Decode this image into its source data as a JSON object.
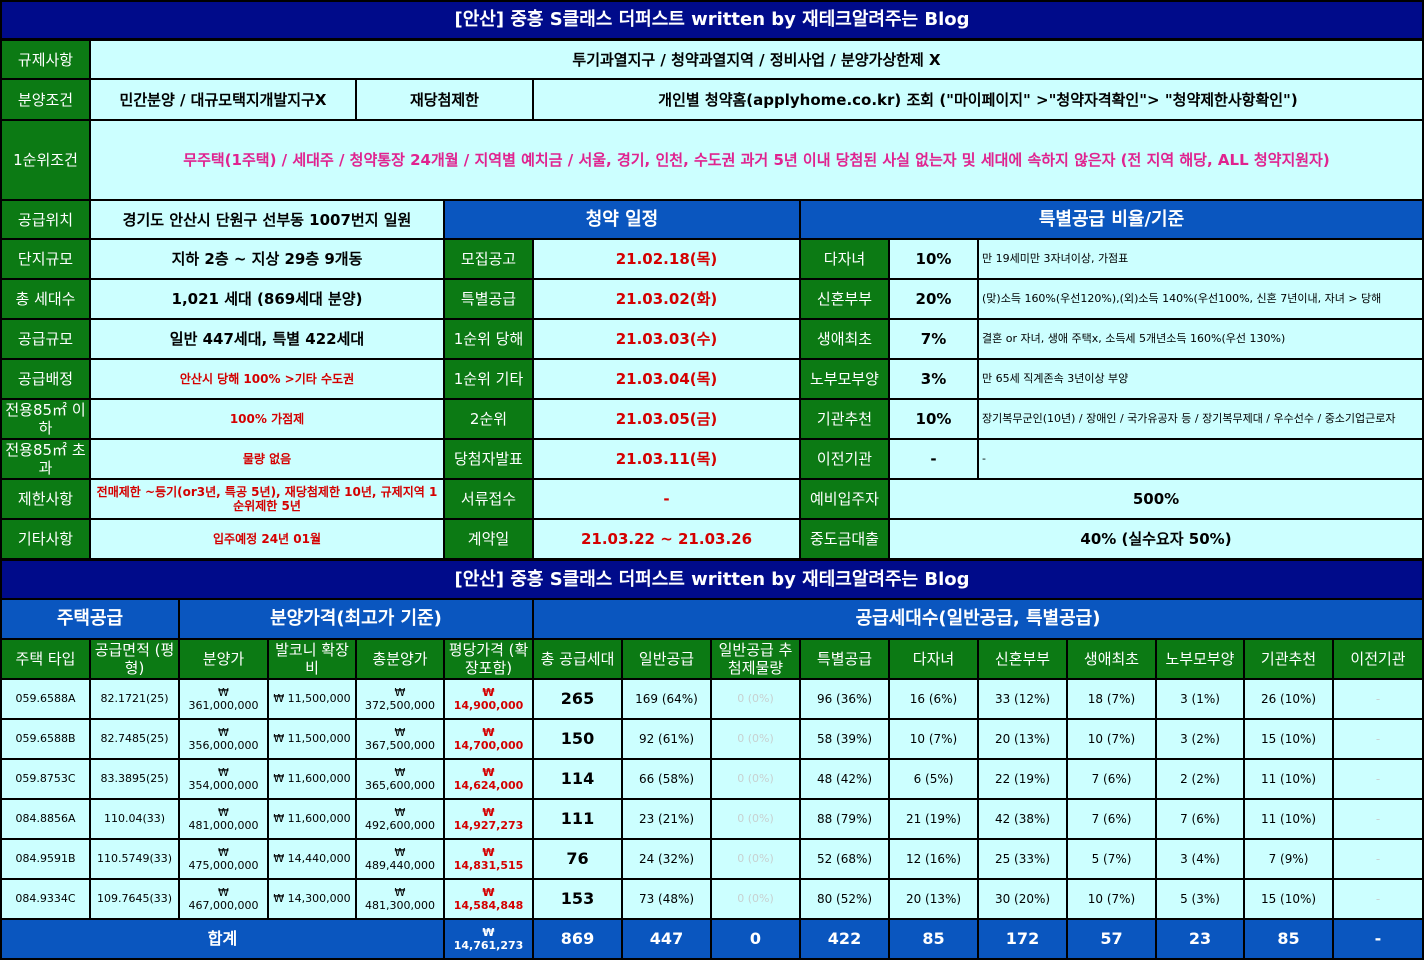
{
  "title": "[안산] 중흥 S클래스 더퍼스트 written by 재테크알려주는 Blog",
  "info": {
    "regulation": {
      "label": "규제사항",
      "value": "투기과열지구 / 청약과열지역 / 정비사업 / 분양가상한제 X"
    },
    "sale_condition": {
      "label": "분양조건",
      "value": "민간분양 / 대규모택지개발지구X",
      "sub_label": "재당첨제한",
      "sub_value": "개인별 청약홈(applyhome.co.kr) 조회 (\"마이페이지\" >\"청약자격확인\"> \"청약제한사항확인\")"
    },
    "first_rank": {
      "label": "1순위조건",
      "value": "무주택(1주택) / 세대주 / 청약통장 24개월 / 지역별 예치금 / 서울, 경기, 인천, 수도권 과거 5년 이내 당첨된 사실 없는자 및 세대에 속하지 않은자 (전 지역 해당, ALL 청약지원자)"
    },
    "location": {
      "label": "공급위치",
      "value": "경기도 안산시 단원구 선부동 1007번지 일원"
    },
    "complex_size": {
      "label": "단지규모",
      "value": "지하 2층 ~ 지상 29층 9개동"
    },
    "total_households": {
      "label": "총 세대수",
      "value": "1,021 세대 (869세대 분양)"
    },
    "supply_scale": {
      "label": "공급규모",
      "value": "일반 447세대, 특별 422세대"
    },
    "allocation": {
      "label": "공급배정",
      "value": "안산시 당해 100% >기타 수도권"
    },
    "under85": {
      "label": "전용85㎡ 이하",
      "value": "100% 가점제"
    },
    "over85": {
      "label": "전용85㎡ 초과",
      "value": "물량 없음"
    },
    "restrictions": {
      "label": "제한사항",
      "value": "전매제한 ~등기(or3년, 특공 5년), 재당첨제한 10년, 규제지역 1순위제한 5년"
    },
    "etc": {
      "label": "기타사항",
      "value": "입주예정 24년 01월"
    }
  },
  "schedule": {
    "header": "청약 일정",
    "rows": [
      {
        "label": "모집공고",
        "value": "21.02.18(목)"
      },
      {
        "label": "특별공급",
        "value": "21.03.02(화)"
      },
      {
        "label": "1순위 당해",
        "value": "21.03.03(수)"
      },
      {
        "label": "1순위 기타",
        "value": "21.03.04(목)"
      },
      {
        "label": "2순위",
        "value": "21.03.05(금)"
      },
      {
        "label": "당첨자발표",
        "value": "21.03.11(목)"
      },
      {
        "label": "서류접수",
        "value": "-"
      },
      {
        "label": "계약일",
        "value": "21.03.22 ~ 21.03.26"
      }
    ]
  },
  "special": {
    "header": "특별공급 비율/기준",
    "rows": [
      {
        "label": "다자녀",
        "ratio": "10%",
        "desc": "만 19세미만 3자녀이상, 가점표"
      },
      {
        "label": "신혼부부",
        "ratio": "20%",
        "desc": "(맞)소득 160%(우선120%),(외)소득 140%(우선100%, 신혼 7년이내, 자녀 > 당해"
      },
      {
        "label": "생애최초",
        "ratio": "7%",
        "desc": "결혼 or 자녀, 생애 주택x, 소득세 5개년소득 160%(우선 130%)"
      },
      {
        "label": "노부모부양",
        "ratio": "3%",
        "desc": "만 65세 직계존속 3년이상 부양"
      },
      {
        "label": "기관추천",
        "ratio": "10%",
        "desc": "장기복무군인(10년) / 장애인 / 국가유공자 등 / 장기복무제대 / 우수선수 / 중소기업근로자"
      },
      {
        "label": "이전기관",
        "ratio": "-",
        "desc": "-"
      }
    ],
    "reserve": {
      "label": "예비입주자",
      "value": "500%"
    },
    "loan": {
      "label": "중도금대출",
      "value": "40% (실수요자 50%)"
    }
  },
  "table": {
    "title": "[안산] 중흥 S클래스 더퍼스트 written by 재테크알려주는 Blog",
    "groups": {
      "housing": "주택공급",
      "price": "분양가격(최고가 기준)",
      "supply": "공급세대수(일반공급, 특별공급)"
    },
    "columns": [
      "주택 타입",
      "공급면적 (평형)",
      "분양가",
      "발코니 확장비",
      "총분양가",
      "평당가격 (확장포함)",
      "총 공급세대",
      "일반공급",
      "일반공급 추첨제물량",
      "특별공급",
      "다자녀",
      "신혼부부",
      "생애최초",
      "노부모부양",
      "기관추천",
      "이전기관"
    ],
    "rows": [
      [
        "059.6588A",
        "82.1721(25)",
        "₩ 361,000,000",
        "₩ 11,500,000",
        "₩ 372,500,000",
        "₩ 14,900,000",
        "265",
        "169 (64%)",
        "0 (0%)",
        "96 (36%)",
        "16 (6%)",
        "33 (12%)",
        "18 (7%)",
        "3 (1%)",
        "26 (10%)",
        "-"
      ],
      [
        "059.6588B",
        "82.7485(25)",
        "₩ 356,000,000",
        "₩ 11,500,000",
        "₩ 367,500,000",
        "₩ 14,700,000",
        "150",
        "92 (61%)",
        "0 (0%)",
        "58 (39%)",
        "10 (7%)",
        "20 (13%)",
        "10 (7%)",
        "3 (2%)",
        "15 (10%)",
        "-"
      ],
      [
        "059.8753C",
        "83.3895(25)",
        "₩ 354,000,000",
        "₩ 11,600,000",
        "₩ 365,600,000",
        "₩ 14,624,000",
        "114",
        "66 (58%)",
        "0 (0%)",
        "48 (42%)",
        "6 (5%)",
        "22 (19%)",
        "7 (6%)",
        "2 (2%)",
        "11 (10%)",
        "-"
      ],
      [
        "084.8856A",
        "110.04(33)",
        "₩ 481,000,000",
        "₩ 11,600,000",
        "₩ 492,600,000",
        "₩ 14,927,273",
        "111",
        "23 (21%)",
        "0 (0%)",
        "88 (79%)",
        "21 (19%)",
        "42 (38%)",
        "7 (6%)",
        "7 (6%)",
        "11 (10%)",
        "-"
      ],
      [
        "084.9591B",
        "110.5749(33)",
        "₩ 475,000,000",
        "₩ 14,440,000",
        "₩ 489,440,000",
        "₩ 14,831,515",
        "76",
        "24 (32%)",
        "0 (0%)",
        "52 (68%)",
        "12 (16%)",
        "25 (33%)",
        "5 (7%)",
        "3 (4%)",
        "7 (9%)",
        "-"
      ],
      [
        "084.9334C",
        "109.7645(33)",
        "₩ 467,000,000",
        "₩ 14,300,000",
        "₩ 481,300,000",
        "₩ 14,584,848",
        "153",
        "73 (48%)",
        "0 (0%)",
        "80 (52%)",
        "20 (13%)",
        "30 (20%)",
        "10 (7%)",
        "5 (3%)",
        "15 (10%)",
        "-"
      ]
    ],
    "total": {
      "label": "합계",
      "values": [
        "₩ 14,761,273",
        "869",
        "447",
        "0",
        "422",
        "85",
        "172",
        "57",
        "23",
        "85",
        "-"
      ]
    }
  }
}
